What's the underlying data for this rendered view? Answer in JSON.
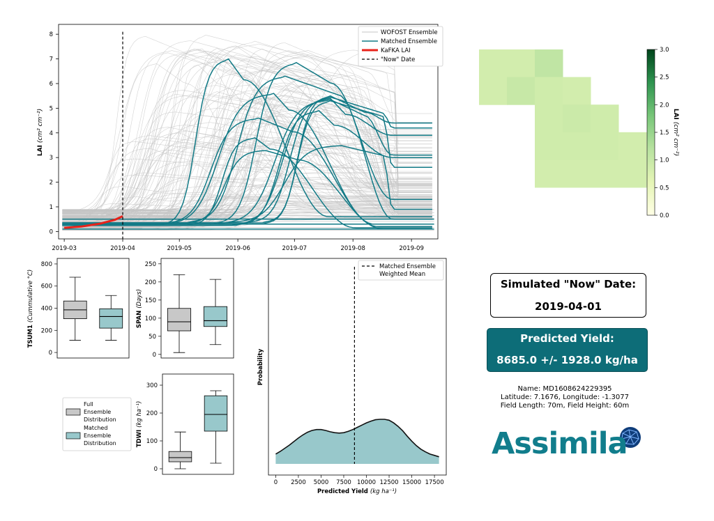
{
  "colors": {
    "wofost": "#c4c4c4",
    "matched": "#127a86",
    "kafka": "#e8221a",
    "now_line": "#000000",
    "full_box": "#c8c8c8",
    "matched_box": "#98c8cb",
    "yield_fill": "#98c8cb",
    "header_teal": "#0d6d78",
    "map_low": "#ffffe5",
    "map_high": "#00441b",
    "logo": "#117d8c"
  },
  "lai_chart": {
    "ylabel": "LAI",
    "ylabel_units": "(cm² cm⁻²)",
    "xticks": [
      "2019-03",
      "2019-04",
      "2019-05",
      "2019-06",
      "2019-07",
      "2019-08",
      "2019-09"
    ],
    "yticks": [
      "0",
      "1",
      "2",
      "3",
      "4",
      "5",
      "6",
      "7",
      "8"
    ],
    "legend": [
      "WOFOST Ensemble",
      "Matched Ensemble",
      "KaFKA LAI",
      "\"Now\" Date"
    ]
  },
  "map": {
    "colorbar_label": "LAI",
    "colorbar_units": "(cm² cm⁻²)",
    "colorbar_ticks": [
      "0.0",
      "0.5",
      "1.0",
      "1.5",
      "2.0",
      "2.5",
      "3.0"
    ]
  },
  "tsum_box": {
    "ylabel": "TSUM1",
    "units": "(Cummulative °C)",
    "yticks": [
      "0",
      "200",
      "400",
      "600",
      "800"
    ]
  },
  "span_box": {
    "ylabel": "SPAN",
    "units": "(Days)",
    "yticks": [
      "0",
      "50",
      "100",
      "150",
      "200",
      "250"
    ]
  },
  "tdwi_box": {
    "ylabel": "TDWI",
    "units": "(kg ha⁻¹)",
    "yticks": [
      "0",
      "100",
      "200",
      "300"
    ]
  },
  "box_legend": {
    "full": [
      "Full",
      "Ensemble",
      "Distribution"
    ],
    "matched": [
      "Matched",
      "Ensemble",
      "Distribution"
    ]
  },
  "yield_chart": {
    "ylabel": "Probability",
    "xlabel": "Predicted Yield",
    "xlabel_units": "(kg ha⁻¹)",
    "xticks": [
      "0",
      "2500",
      "5000",
      "7500",
      "10000",
      "12500",
      "15000",
      "17500"
    ],
    "legend": [
      "Matched Ensemble",
      "Weighted Mean"
    ]
  },
  "info": {
    "date_title": "Simulated \"Now\" Date:",
    "date_value": "2019-04-01",
    "yield_title": "Predicted Yield:",
    "yield_value": "8685.0 +/- 1928.0 kg/ha",
    "name_line": "Name: MD1608624229395",
    "latlon_line": "Latitude: 7.1676, Longitude: -1.3077",
    "size_line": "Field Length: 70m, Field Height: 60m",
    "logo_text": "Assimila"
  },
  "chart_data": [
    {
      "type": "line",
      "title": "",
      "xlabel": "",
      "ylabel": "LAI (cm² cm⁻²)",
      "xlim": [
        "2019-02-26",
        "2019-09-15"
      ],
      "ylim": [
        -0.3,
        8.4
      ],
      "now_date": "2019-04-01",
      "kafka_lai": {
        "x": [
          "2019-03-01",
          "2019-03-10",
          "2019-03-20",
          "2019-03-28",
          "2019-04-01"
        ],
        "y": [
          0.15,
          0.2,
          0.32,
          0.48,
          0.62
        ]
      },
      "matched_ensemble": [
        {
          "peak_date": "2019-05-27",
          "peak": 7.0,
          "final": 0.6
        },
        {
          "peak_date": "2019-07-02",
          "peak": 6.85,
          "final": 1.3
        },
        {
          "peak_date": "2019-06-26",
          "peak": 6.3,
          "final": 0.5
        },
        {
          "peak_date": "2019-06-20",
          "peak": 5.6,
          "final": 0.3
        },
        {
          "peak_date": "2019-07-20",
          "peak": 5.5,
          "final": 4.4
        },
        {
          "peak_date": "2019-07-20",
          "peak": 5.45,
          "final": 4.2
        },
        {
          "peak_date": "2019-07-20",
          "peak": 5.4,
          "final": 3.9
        },
        {
          "peak_date": "2019-07-20",
          "peak": 5.35,
          "final": 3.1
        },
        {
          "peak_date": "2019-07-20",
          "peak": 5.3,
          "final": 2.6
        },
        {
          "peak_date": "2019-07-14",
          "peak": 4.9,
          "final": 3.0
        },
        {
          "peak_date": "2019-06-12",
          "peak": 4.6,
          "final": 0.2
        },
        {
          "peak_date": "2019-07-25",
          "peak": 3.5,
          "final": 0.9
        },
        {
          "peak_date": "2019-06-10",
          "peak": 3.8,
          "final": 0.15
        },
        {
          "peak_date": "2019-06-15",
          "peak": 3.3,
          "final": 0.1
        }
      ],
      "wofost_ensemble": {
        "min_peak": 0.5,
        "max_peak": 8.2,
        "final_range": [
          0.5,
          4.8
        ]
      }
    },
    {
      "type": "heatmap",
      "title": "",
      "colorbar_label": "LAI (cm² cm⁻²)",
      "vmin": 0.0,
      "vmax": 3.0,
      "grid": [
        [
          0.85,
          0.85,
          1.1,
          null,
          null,
          null
        ],
        [
          0.85,
          1.0,
          0.9,
          0.85,
          null,
          null
        ],
        [
          null,
          null,
          0.9,
          0.95,
          0.9,
          null
        ],
        [
          null,
          null,
          0.9,
          0.9,
          0.9,
          0.85
        ],
        [
          null,
          null,
          0.85,
          0.85,
          0.85,
          0.85
        ]
      ]
    },
    {
      "type": "box",
      "ylabel": "TSUM1 (Cummulative °C)",
      "ylim": [
        -50,
        850
      ],
      "full": {
        "min": 110,
        "q1": 305,
        "median": 385,
        "q3": 465,
        "max": 680
      },
      "matched": {
        "min": 110,
        "q1": 220,
        "median": 325,
        "q3": 395,
        "max": 515
      }
    },
    {
      "type": "box",
      "ylabel": "SPAN (Days)",
      "ylim": [
        -10,
        265
      ],
      "full": {
        "min": 5,
        "q1": 65,
        "median": 90,
        "q3": 127,
        "max": 220
      },
      "matched": {
        "min": 27,
        "q1": 77,
        "median": 93,
        "q3": 132,
        "max": 207
      }
    },
    {
      "type": "box",
      "ylabel": "TDWI (kg ha⁻¹)",
      "ylim": [
        -20,
        340
      ],
      "full": {
        "min": 0,
        "q1": 25,
        "median": 40,
        "q3": 62,
        "max": 132
      },
      "matched": {
        "min": 20,
        "q1": 135,
        "median": 195,
        "q3": 262,
        "max": 280
      }
    },
    {
      "type": "area",
      "title": "",
      "xlabel": "Predicted Yield (kg ha⁻¹)",
      "ylabel": "Probability",
      "xlim": [
        -800,
        18800
      ],
      "weighted_mean": 8685,
      "x": [
        0,
        500,
        1000,
        1500,
        2000,
        2500,
        3000,
        3500,
        4000,
        4500,
        5000,
        5500,
        6000,
        6500,
        7000,
        7500,
        8000,
        8500,
        9000,
        9500,
        10000,
        10500,
        11000,
        11500,
        12000,
        12500,
        13000,
        13500,
        14000,
        14500,
        15000,
        15500,
        16000,
        16500,
        17000,
        17500,
        18000
      ],
      "y": [
        0.22,
        0.28,
        0.35,
        0.42,
        0.5,
        0.58,
        0.65,
        0.71,
        0.75,
        0.77,
        0.77,
        0.75,
        0.72,
        0.7,
        0.69,
        0.7,
        0.73,
        0.77,
        0.82,
        0.87,
        0.92,
        0.96,
        0.99,
        1.0,
        1.0,
        0.98,
        0.92,
        0.84,
        0.74,
        0.62,
        0.51,
        0.41,
        0.33,
        0.27,
        0.22,
        0.19,
        0.16
      ]
    }
  ]
}
